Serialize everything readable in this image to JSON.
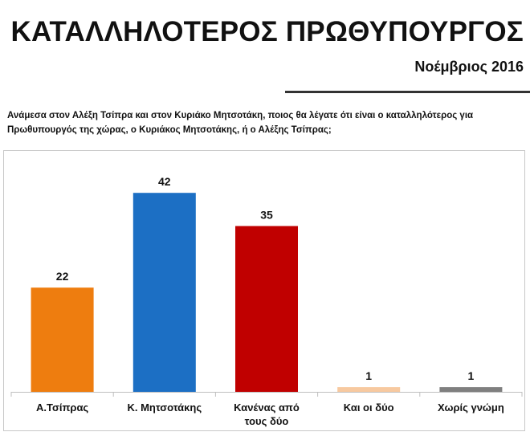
{
  "header": {
    "title": "ΚΑΤΑΛΛΗΛΟΤΕΡΟΣ ΠΡΩΘΥΠΟΥΡΓΟΣ",
    "date": "Νοέμβριος 2016"
  },
  "question": "Ανάμεσα στον Αλέξη Τσίπρα και στον Κυριάκο Μητσοτάκη, ποιος θα λέγατε ότι είναι ο καταλληλότερος για Πρωθυπουργός της χώρας, ο Κυριάκος Μητσοτάκης, ή ο Αλέξης Τσίπρας;",
  "chart_data": {
    "type": "bar",
    "categories": [
      "Α.Τσίπρας",
      "Κ. Μητσοτάκης",
      "Κανένας από τους δύο",
      "Και οι δύο",
      "Χωρίς γνώμη"
    ],
    "category_lines": [
      [
        "Α.Τσίπρας"
      ],
      [
        "Κ. Μητσοτάκης"
      ],
      [
        "Κανένας από",
        "τους δύο"
      ],
      [
        "Και οι δύο"
      ],
      [
        "Χωρίς γνώμη"
      ]
    ],
    "values": [
      22,
      42,
      35,
      1,
      1
    ],
    "value_labels": [
      "22",
      "42",
      "35",
      "1",
      "1"
    ],
    "colors": [
      "#ee7d0f",
      "#1c6fc4",
      "#c00000",
      "#f7c9a0",
      "#7f7f7f"
    ],
    "ylim": [
      0,
      50
    ],
    "grid": false,
    "legend": "none"
  }
}
